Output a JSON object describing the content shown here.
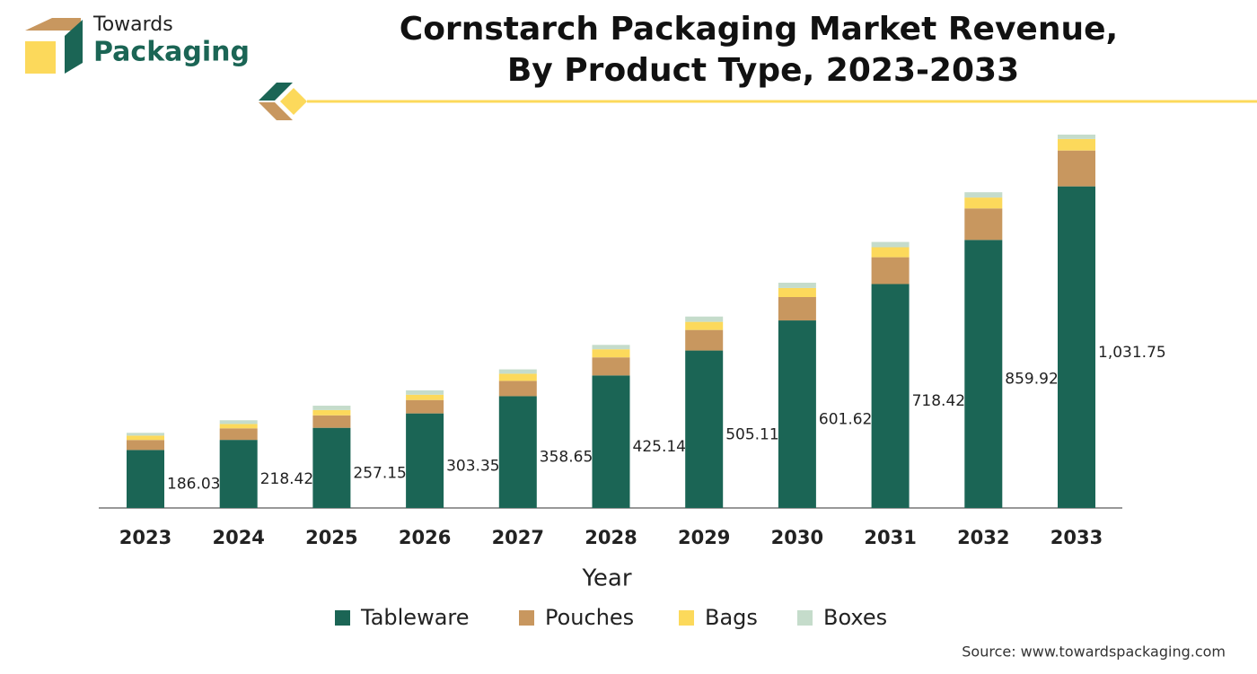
{
  "logo": {
    "line1": "Towards",
    "line2": "Packaging"
  },
  "chart_data": {
    "type": "stacked-bar",
    "title": "Cornstarch Packaging Market Revenue,",
    "subtitle": "By Product Type, 2023-2033",
    "x_label": "Year",
    "source": "Source: www.towardspackaging.com",
    "categories": [
      "2023",
      "2024",
      "2025",
      "2026",
      "2027",
      "2028",
      "2029",
      "2030",
      "2031",
      "2032",
      "2033"
    ],
    "series": [
      {
        "name": "Tableware",
        "color": "#1b6555",
        "values": [
          186.03,
          218.42,
          257.15,
          303.35,
          358.65,
          425.14,
          505.11,
          601.62,
          718.42,
          859.92,
          1031.75
        ],
        "value_labels": [
          "186.03",
          "218.42",
          "257.15",
          "303.35",
          "358.65",
          "425.14",
          "505.11",
          "601.62",
          "718.42",
          "859.92",
          "1,031.75"
        ]
      },
      {
        "name": "Pouches",
        "color": "#c8975f",
        "values": [
          32,
          37,
          40,
          43,
          49,
          58,
          66,
          75,
          86,
          101,
          115
        ]
      },
      {
        "name": "Bags",
        "color": "#fcd95b",
        "values": [
          14,
          14,
          17,
          17,
          23,
          26,
          26,
          29,
          32,
          35,
          37
        ]
      },
      {
        "name": "Boxes",
        "color": "#c5dccb",
        "values": [
          9,
          12,
          14,
          14,
          14,
          14,
          17,
          17,
          17,
          17,
          14
        ]
      }
    ]
  }
}
